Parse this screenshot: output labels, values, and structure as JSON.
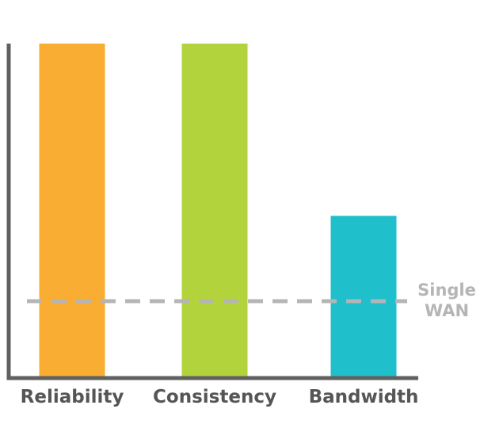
{
  "chart_data": {
    "type": "bar",
    "categories": [
      "Reliability",
      "Consistency",
      "Bandwidth"
    ],
    "values": [
      10,
      10,
      4.85
    ],
    "colors": [
      "#f9ad33",
      "#b3d33d",
      "#1fbfcb"
    ],
    "ylim": [
      0,
      10
    ],
    "axis_color": "#606060",
    "reference_line": {
      "value": 2.3,
      "style": "dashed",
      "color": "#b5b5b5",
      "label_lines": [
        "Single",
        "WAN"
      ]
    },
    "grid": false,
    "legend": "none"
  }
}
